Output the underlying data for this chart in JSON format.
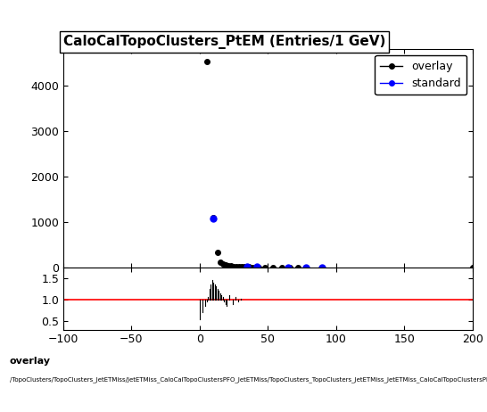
{
  "title": "CaloCalTopoClusters_PtEM (Entries/1 GeV)",
  "xlim": [
    -100,
    200
  ],
  "ylim_main": [
    0,
    4800
  ],
  "ylim_ratio": [
    0.3,
    1.75
  ],
  "footer_line1": "overlay",
  "footer_line2": "/TopoClusters/TopoClusters_JetETMiss/JetETMiss_CaloCalTopoClustersPFO_JetETMiss/TopoClusters_TopoClusters_JetETMiss_JetETMiss_CaloCalTopoClustersPFO_JetETMiss_Cluster_PtEM",
  "overlay_x": [
    5,
    10,
    13,
    15,
    17,
    19,
    21,
    23,
    25,
    27,
    29,
    31,
    33,
    36,
    39,
    43,
    48,
    54,
    60,
    66,
    72,
    90,
    200
  ],
  "overlay_y": [
    4540,
    1100,
    320,
    120,
    80,
    55,
    40,
    30,
    20,
    14,
    10,
    8,
    7,
    6,
    4,
    3,
    3,
    2,
    2,
    1,
    1,
    1,
    1
  ],
  "standard_x": [
    10,
    35,
    42,
    65,
    78,
    90
  ],
  "standard_y": [
    1080,
    22,
    10,
    2,
    2,
    1
  ],
  "ratio_x_lines": [
    -2,
    0,
    2,
    4,
    5,
    6,
    7,
    8,
    9,
    10,
    11,
    12,
    13,
    14,
    15,
    16,
    17,
    18,
    19,
    20,
    22,
    24,
    26,
    28,
    30,
    35,
    40,
    45,
    50,
    55,
    60,
    65,
    90,
    200
  ],
  "ratio_y_lines": [
    1.0,
    0.55,
    0.7,
    0.85,
    0.95,
    1.05,
    1.25,
    1.35,
    1.45,
    1.4,
    1.35,
    1.3,
    1.25,
    1.2,
    1.15,
    1.1,
    1.05,
    0.95,
    0.9,
    0.85,
    1.1,
    0.9,
    1.05,
    0.95,
    1.02,
    1.0,
    1.0,
    1.0,
    1.0,
    1.0,
    1.0,
    1.0,
    1.0,
    1.0
  ],
  "ratio_yticks": [
    0.5,
    1.0,
    1.5
  ],
  "main_yticks": [
    0,
    1000,
    2000,
    3000,
    4000
  ],
  "xticks": [
    -100,
    -50,
    0,
    50,
    100,
    150,
    200
  ],
  "overlay_color": "#000000",
  "standard_color": "#0000ff",
  "ratio_line_color": "#ff0000",
  "background_color": "#ffffff",
  "title_fontsize": 11,
  "legend_fontsize": 9,
  "tick_fontsize": 9
}
